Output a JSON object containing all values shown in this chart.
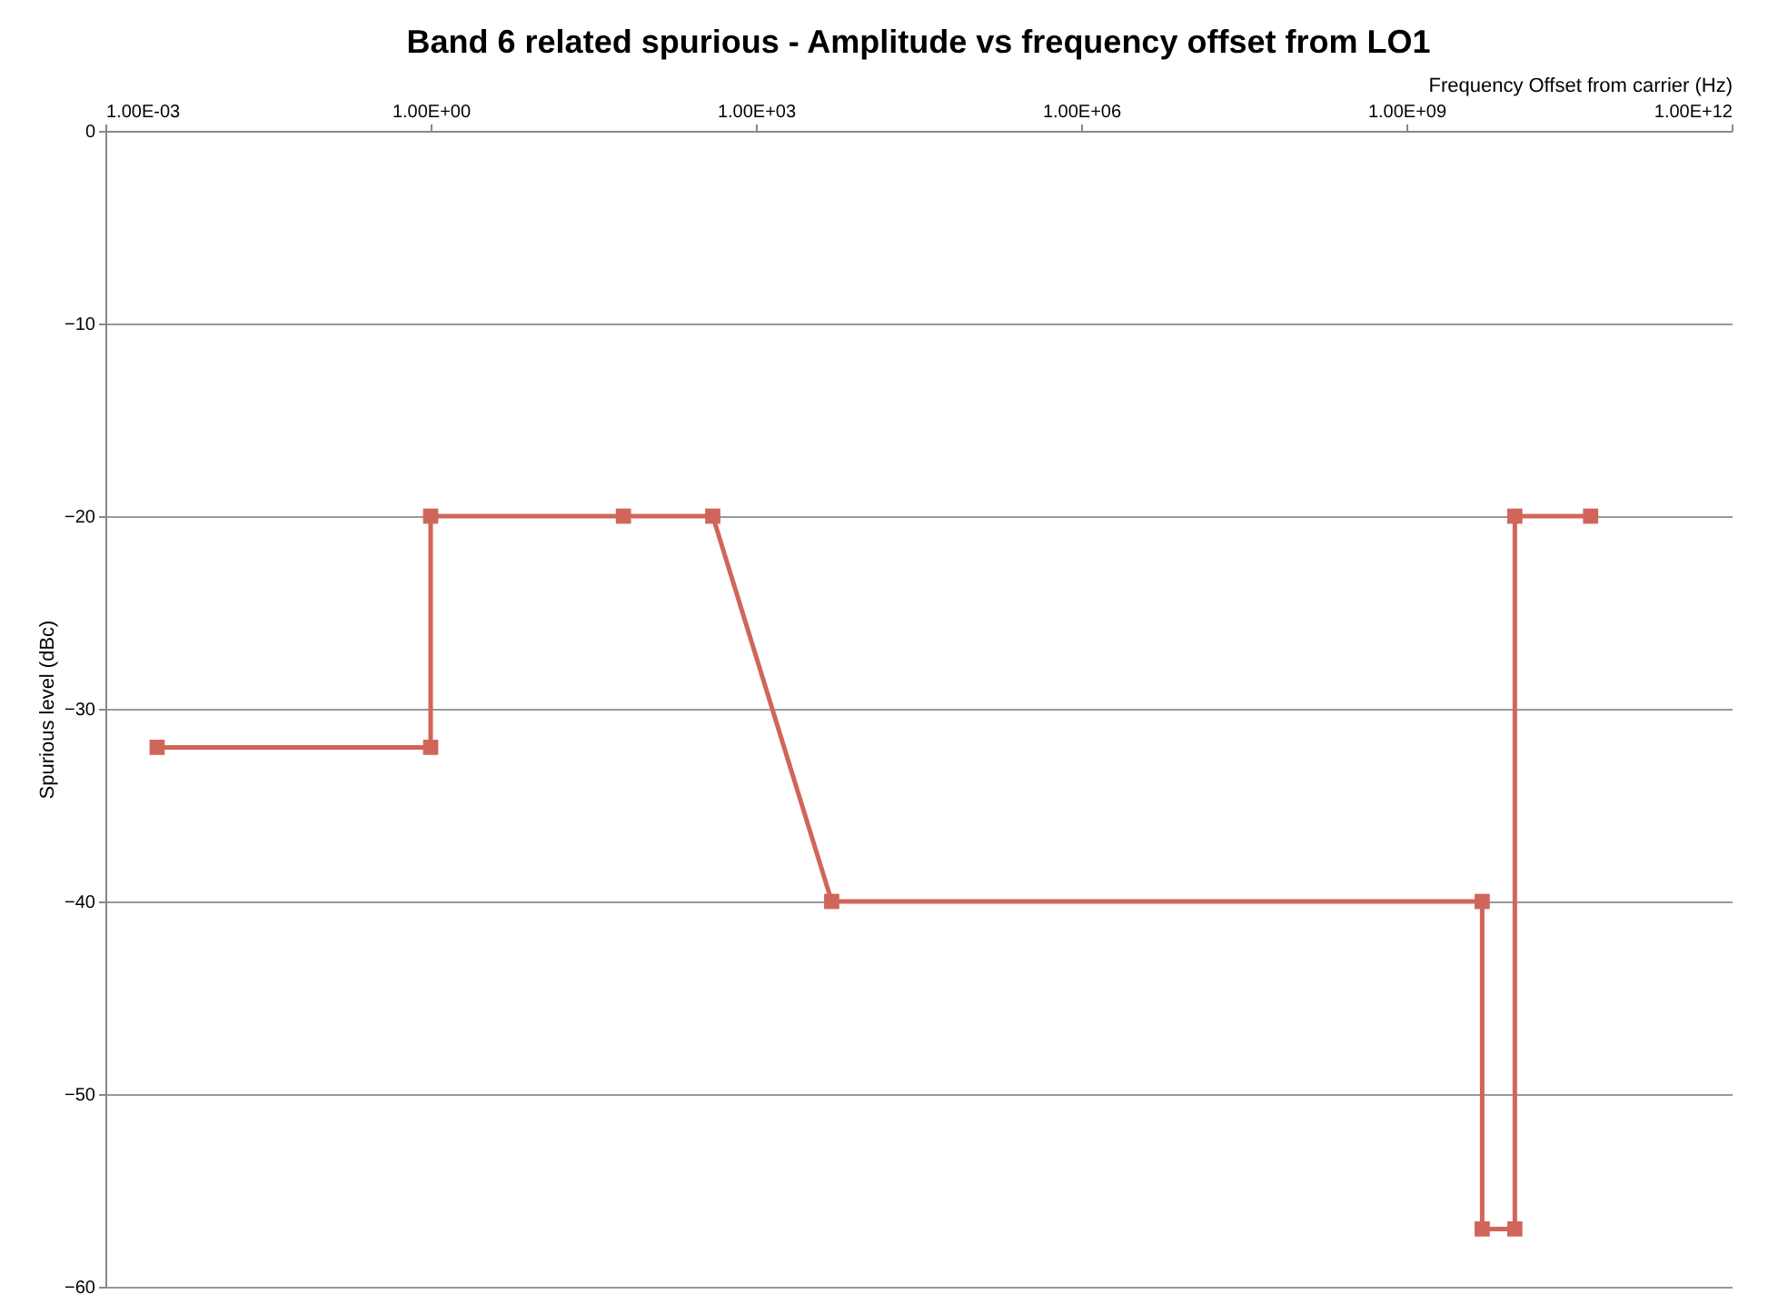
{
  "chart_data": {
    "type": "line",
    "title": "Band 6 related spurious - Amplitude vs frequency offset from LO1",
    "xlabel": "Frequency Offset from carrier (Hz)",
    "ylabel": "Spurious level (dBc)",
    "log": "x",
    "x": [
      0.003,
      1,
      1,
      60,
      400,
      5000,
      5000000000,
      5000000000,
      10000000000,
      10000000000,
      50000000000
    ],
    "series": [
      {
        "color": "#d0665a",
        "values": [
          -32,
          -32,
          -20,
          -20,
          -20,
          -40,
          -40,
          -57,
          -57,
          -20,
          -20
        ]
      }
    ],
    "xlim": [
      0.001,
      1000000000000
    ],
    "xticks": [
      {
        "value": 0.001,
        "label": "1.00E-03"
      },
      {
        "value": 1,
        "label": "1.00E+00"
      },
      {
        "value": 1000,
        "label": "1.00E+03"
      },
      {
        "value": 1000000,
        "label": "1.00E+06"
      },
      {
        "value": 1000000000,
        "label": "1.00E+09"
      },
      {
        "value": 1000000000000,
        "label": "1.00E+12"
      }
    ],
    "ylim": [
      -60,
      0
    ],
    "yticks": [
      0,
      -10,
      -20,
      -30,
      -40,
      -50,
      -60
    ],
    "grid": "y",
    "marker": "square",
    "line_style": "solid"
  }
}
